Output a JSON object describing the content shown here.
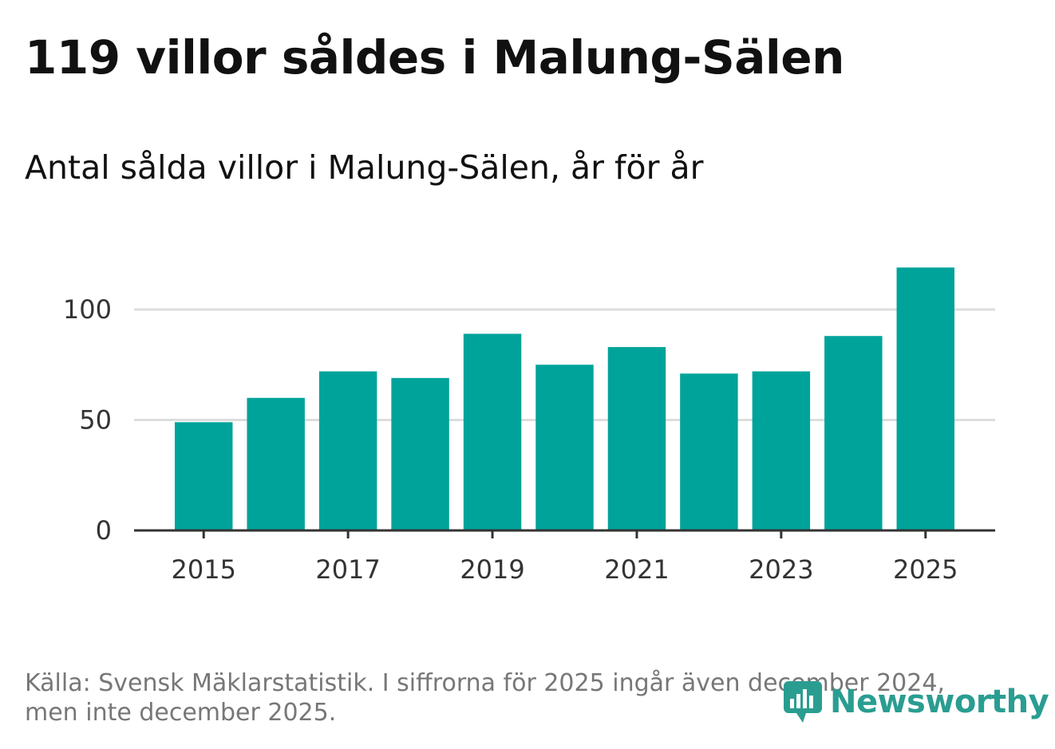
{
  "title": "119 villor såldes i Malung-Sälen",
  "subtitle": "Antal sålda villor i Malung-Sälen, år för år",
  "source": "Källa: Svensk Mäklarstatistik. I siffrorna för 2025 ingår även december 2024, men inte december 2025.",
  "brand": {
    "name": "Newsworthy",
    "color": "#2a9d91"
  },
  "colors": {
    "bar": "#00a39a",
    "grid": "#dddddd",
    "axis": "#333333"
  },
  "chart_data": {
    "type": "bar",
    "title": "Antal sålda villor i Malung-Sälen, år för år",
    "xlabel": "",
    "ylabel": "",
    "categories": [
      "2015",
      "2016",
      "2017",
      "2018",
      "2019",
      "2020",
      "2021",
      "2022",
      "2023",
      "2024",
      "2025"
    ],
    "values": [
      49,
      60,
      72,
      69,
      89,
      75,
      83,
      71,
      72,
      88,
      119
    ],
    "x_tick_labels": [
      "2015",
      "2017",
      "2019",
      "2021",
      "2023",
      "2025"
    ],
    "y_ticks": [
      0,
      50,
      100
    ],
    "ylim": [
      0,
      120
    ],
    "grid": true
  }
}
